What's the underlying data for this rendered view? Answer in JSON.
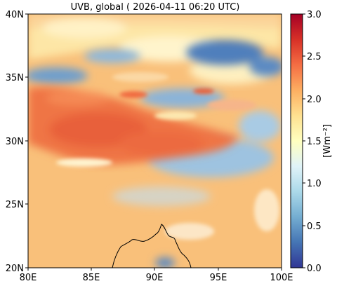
{
  "title": "UVB, global ( 2026-04-11 06:20 UTC)",
  "map": {
    "lon_range": [
      80,
      100
    ],
    "lat_range": [
      20,
      40
    ],
    "x_ticks": [
      "80E",
      "85E",
      "90E",
      "95E",
      "100E"
    ],
    "y_ticks": [
      "40N",
      "35N",
      "30N",
      "25N",
      "20N"
    ],
    "coastline": "black"
  },
  "colorbar": {
    "label": "[Wm⁻²]",
    "range": [
      0.0,
      3.0
    ],
    "ticks": [
      "3.0",
      "2.5",
      "2.0",
      "1.5",
      "1.0",
      "0.5",
      "0.0"
    ],
    "colormap": "RdYlBu_r",
    "stops": [
      "#313695",
      "#4575b4",
      "#74add1",
      "#abd9e9",
      "#e0f3f8",
      "#ffffbf",
      "#fee090",
      "#fdae61",
      "#f46d43",
      "#d73027",
      "#a50026"
    ]
  },
  "colors": {
    "background_field": "#f9c07a",
    "plateau": "#ef7545",
    "blue_clouds": "#7aa6d1",
    "light_clouds": "#fef3c8"
  }
}
